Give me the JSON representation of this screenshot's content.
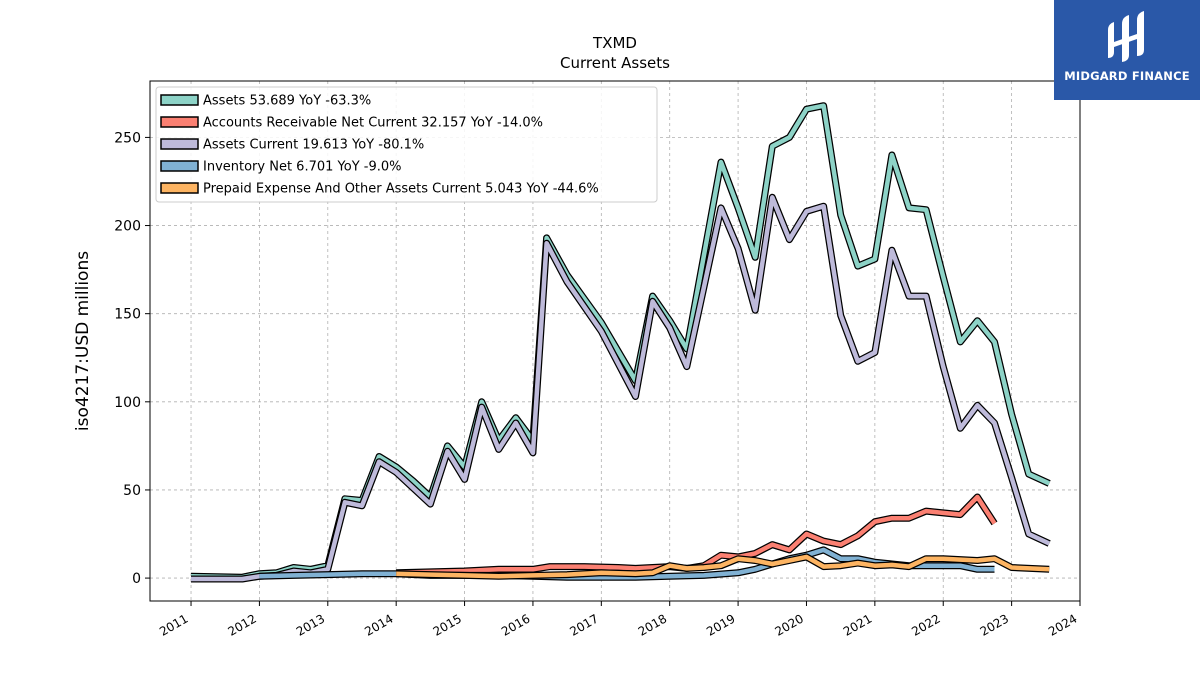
{
  "brand": {
    "name": "MIDGARD FINANCE",
    "bg_color": "#2a58a8"
  },
  "chart_data": {
    "type": "line",
    "title": "TXMD",
    "subtitle": "Current  Assets",
    "ylabel": "iso4217:USD  millions",
    "xlabel": "",
    "xlim": [
      2010.4,
      2024.0
    ],
    "ylim": [
      -13,
      282
    ],
    "yticks": [
      0,
      50,
      100,
      150,
      200,
      250
    ],
    "xticks": [
      2011,
      2012,
      2013,
      2014,
      2015,
      2016,
      2017,
      2018,
      2019,
      2020,
      2021,
      2022,
      2023,
      2024
    ],
    "grid": true,
    "legend_position": "top-left",
    "series": [
      {
        "name": "Assets  53.689 YoY -63.3%",
        "color": "#8dd3c7",
        "points": [
          [
            2011.0,
            1
          ],
          [
            2011.75,
            0.5
          ],
          [
            2012.0,
            2.5
          ],
          [
            2012.25,
            3
          ],
          [
            2012.5,
            6
          ],
          [
            2012.75,
            5
          ],
          [
            2013.0,
            7
          ],
          [
            2013.25,
            45
          ],
          [
            2013.5,
            44
          ],
          [
            2013.75,
            69
          ],
          [
            2014.0,
            63
          ],
          [
            2014.25,
            55
          ],
          [
            2014.5,
            46
          ],
          [
            2014.75,
            75
          ],
          [
            2015.0,
            63
          ],
          [
            2015.25,
            100
          ],
          [
            2015.5,
            78
          ],
          [
            2015.75,
            91
          ],
          [
            2016.0,
            78
          ],
          [
            2016.2,
            193
          ],
          [
            2016.5,
            172
          ],
          [
            2017.0,
            145
          ],
          [
            2017.5,
            112
          ],
          [
            2017.75,
            160
          ],
          [
            2018.0,
            146
          ],
          [
            2018.25,
            130
          ],
          [
            2018.75,
            236
          ],
          [
            2019.0,
            210
          ],
          [
            2019.25,
            182
          ],
          [
            2019.5,
            245
          ],
          [
            2019.75,
            250
          ],
          [
            2020.0,
            266
          ],
          [
            2020.25,
            268
          ],
          [
            2020.5,
            206
          ],
          [
            2020.75,
            177
          ],
          [
            2021.0,
            181
          ],
          [
            2021.25,
            240
          ],
          [
            2021.5,
            210
          ],
          [
            2021.75,
            209
          ],
          [
            2022.0,
            171
          ],
          [
            2022.25,
            134
          ],
          [
            2022.5,
            146
          ],
          [
            2022.75,
            134
          ],
          [
            2023.0,
            93
          ],
          [
            2023.25,
            59
          ],
          [
            2023.55,
            53.7
          ]
        ]
      },
      {
        "name": "Accounts Receivable Net Current  32.157 YoY -14.0%",
        "color": "#fb8072",
        "points": [
          [
            2014.0,
            3
          ],
          [
            2014.5,
            3.5
          ],
          [
            2015.0,
            4
          ],
          [
            2015.5,
            5
          ],
          [
            2016.0,
            5
          ],
          [
            2016.25,
            6.5
          ],
          [
            2016.75,
            6.5
          ],
          [
            2017.25,
            6
          ],
          [
            2017.5,
            5.5
          ],
          [
            2018.0,
            6.5
          ],
          [
            2018.25,
            5.5
          ],
          [
            2018.5,
            7
          ],
          [
            2018.75,
            13
          ],
          [
            2019.0,
            12
          ],
          [
            2019.25,
            14
          ],
          [
            2019.5,
            19
          ],
          [
            2019.75,
            16
          ],
          [
            2020.0,
            25
          ],
          [
            2020.25,
            21
          ],
          [
            2020.5,
            19
          ],
          [
            2020.75,
            24
          ],
          [
            2021.0,
            32
          ],
          [
            2021.25,
            34
          ],
          [
            2021.5,
            34
          ],
          [
            2021.75,
            38
          ],
          [
            2022.0,
            37
          ],
          [
            2022.25,
            36
          ],
          [
            2022.5,
            46
          ],
          [
            2022.75,
            31
          ]
        ]
      },
      {
        "name": "Assets Current  19.613 YoY -80.1%",
        "color": "#bebada",
        "points": [
          [
            2011.0,
            -0.5
          ],
          [
            2011.75,
            -0.5
          ],
          [
            2012.0,
            1
          ],
          [
            2012.25,
            1.5
          ],
          [
            2012.5,
            4
          ],
          [
            2012.75,
            3
          ],
          [
            2013.0,
            5
          ],
          [
            2013.25,
            43
          ],
          [
            2013.5,
            41
          ],
          [
            2013.75,
            66
          ],
          [
            2014.0,
            60
          ],
          [
            2014.25,
            51
          ],
          [
            2014.5,
            42
          ],
          [
            2014.75,
            72
          ],
          [
            2015.0,
            56
          ],
          [
            2015.25,
            97
          ],
          [
            2015.5,
            73
          ],
          [
            2015.75,
            88
          ],
          [
            2016.0,
            71
          ],
          [
            2016.2,
            190
          ],
          [
            2016.5,
            168
          ],
          [
            2017.0,
            140
          ],
          [
            2017.5,
            103
          ],
          [
            2017.75,
            157
          ],
          [
            2018.0,
            142
          ],
          [
            2018.25,
            120
          ],
          [
            2018.75,
            210
          ],
          [
            2019.0,
            187
          ],
          [
            2019.25,
            152
          ],
          [
            2019.5,
            216
          ],
          [
            2019.75,
            192
          ],
          [
            2020.0,
            208
          ],
          [
            2020.25,
            211
          ],
          [
            2020.5,
            149
          ],
          [
            2020.75,
            123
          ],
          [
            2021.0,
            128
          ],
          [
            2021.25,
            186
          ],
          [
            2021.5,
            160
          ],
          [
            2021.75,
            160
          ],
          [
            2022.0,
            120
          ],
          [
            2022.25,
            85
          ],
          [
            2022.5,
            98
          ],
          [
            2022.75,
            88
          ],
          [
            2023.0,
            57
          ],
          [
            2023.25,
            25
          ],
          [
            2023.55,
            19.6
          ]
        ]
      },
      {
        "name": "Inventory Net  6.701 YoY -9.0%",
        "color": "#80b1d3",
        "points": [
          [
            2012.0,
            1
          ],
          [
            2012.5,
            1.5
          ],
          [
            2013.0,
            2
          ],
          [
            2013.5,
            2.5
          ],
          [
            2014.0,
            2.5
          ],
          [
            2014.5,
            1.5
          ],
          [
            2015.0,
            1.5
          ],
          [
            2015.5,
            1.5
          ],
          [
            2016.0,
            1
          ],
          [
            2016.5,
            0.5
          ],
          [
            2017.0,
            0.5
          ],
          [
            2017.5,
            0.5
          ],
          [
            2018.0,
            1
          ],
          [
            2018.5,
            1.5
          ],
          [
            2019.0,
            3
          ],
          [
            2019.25,
            5
          ],
          [
            2019.5,
            8
          ],
          [
            2019.75,
            11
          ],
          [
            2020.0,
            13
          ],
          [
            2020.25,
            16
          ],
          [
            2020.5,
            11
          ],
          [
            2020.75,
            11
          ],
          [
            2021.0,
            9
          ],
          [
            2021.25,
            8
          ],
          [
            2021.5,
            7
          ],
          [
            2021.75,
            7
          ],
          [
            2022.0,
            7
          ],
          [
            2022.25,
            7
          ],
          [
            2022.5,
            5
          ],
          [
            2022.75,
            5
          ]
        ]
      },
      {
        "name": "Prepaid Expense And Other Assets Current  5.043 YoY -44.6%",
        "color": "#fdb462",
        "points": [
          [
            2014.0,
            2.5
          ],
          [
            2014.5,
            2
          ],
          [
            2015.0,
            1.5
          ],
          [
            2015.5,
            1
          ],
          [
            2016.0,
            1.5
          ],
          [
            2016.5,
            2
          ],
          [
            2017.0,
            3
          ],
          [
            2017.5,
            2.5
          ],
          [
            2017.75,
            3
          ],
          [
            2018.0,
            7
          ],
          [
            2018.25,
            5.5
          ],
          [
            2018.5,
            6
          ],
          [
            2018.75,
            7
          ],
          [
            2019.0,
            11
          ],
          [
            2019.25,
            10
          ],
          [
            2019.5,
            8
          ],
          [
            2019.75,
            10
          ],
          [
            2020.0,
            12
          ],
          [
            2020.25,
            6.5
          ],
          [
            2020.5,
            7
          ],
          [
            2020.75,
            8.5
          ],
          [
            2021.0,
            7
          ],
          [
            2021.25,
            7.5
          ],
          [
            2021.5,
            6.5
          ],
          [
            2021.75,
            11
          ],
          [
            2022.0,
            11
          ],
          [
            2022.25,
            10.5
          ],
          [
            2022.5,
            10
          ],
          [
            2022.75,
            11
          ],
          [
            2023.0,
            6
          ],
          [
            2023.55,
            5
          ]
        ]
      }
    ]
  }
}
